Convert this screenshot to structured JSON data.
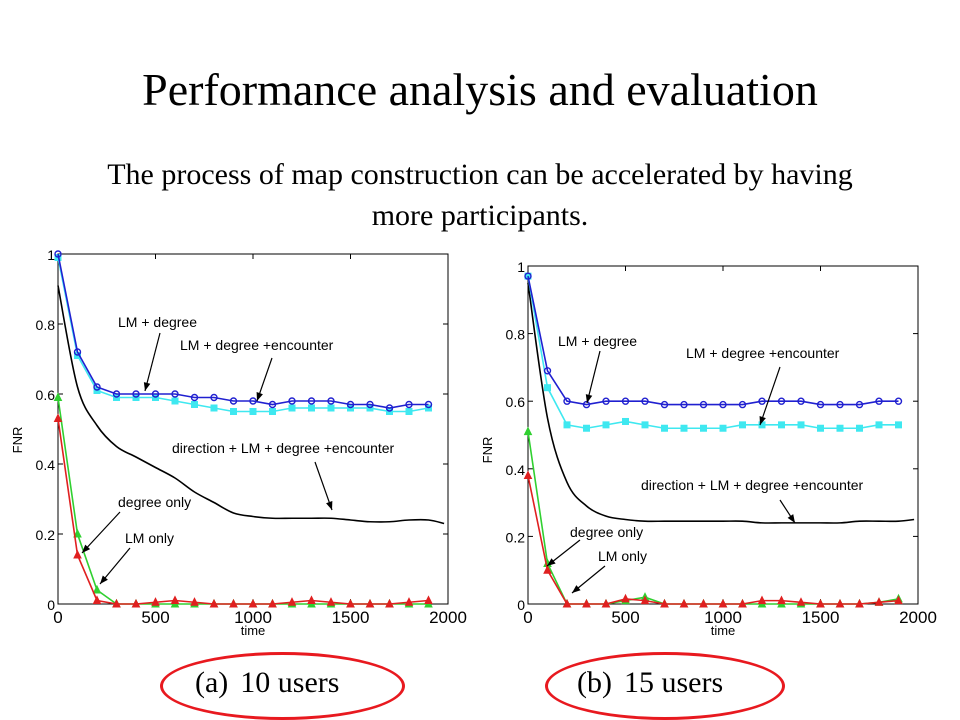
{
  "slide": {
    "title": "Performance analysis and evaluation",
    "subtitle": "The process of map construction can be accelerated by having more participants.",
    "captions": [
      {
        "tag": "(a)",
        "text": "10 users"
      },
      {
        "tag": "(b)",
        "text": "15 users"
      }
    ]
  },
  "colors": {
    "lm_degree": "#2020d0",
    "lm_degree_encounter": "#3fe8f0",
    "direction_lm_degree_encounter": "#000000",
    "degree_only": "#30d030",
    "lm_only": "#e02020",
    "highlight": "#e8191f"
  },
  "chart_data": [
    {
      "type": "line",
      "xlabel": "time",
      "ylabel": "FNR",
      "xlim": [
        0,
        2000
      ],
      "ylim": [
        0,
        1
      ],
      "xticks": [
        "0",
        "500",
        "1000",
        "1500",
        "2000"
      ],
      "yticks": [
        "0",
        "0.2",
        "0.4",
        "0.6",
        "0.8",
        "1"
      ],
      "grid": false,
      "series": [
        {
          "name": "LM + degree",
          "marker": "circle",
          "color_key": "lm_degree",
          "x": [
            0,
            100,
            200,
            300,
            400,
            500,
            600,
            700,
            800,
            900,
            1000,
            1100,
            1200,
            1300,
            1400,
            1500,
            1600,
            1700,
            1800,
            1900
          ],
          "y": [
            1.0,
            0.72,
            0.62,
            0.6,
            0.6,
            0.6,
            0.6,
            0.59,
            0.59,
            0.58,
            0.58,
            0.57,
            0.58,
            0.58,
            0.58,
            0.57,
            0.57,
            0.56,
            0.57,
            0.57
          ]
        },
        {
          "name": "LM + degree +encounter",
          "marker": "square",
          "color_key": "lm_degree_encounter",
          "x": [
            0,
            100,
            200,
            300,
            400,
            500,
            600,
            700,
            800,
            900,
            1000,
            1100,
            1200,
            1300,
            1400,
            1500,
            1600,
            1700,
            1800,
            1900
          ],
          "y": [
            0.99,
            0.71,
            0.61,
            0.59,
            0.59,
            0.59,
            0.58,
            0.57,
            0.56,
            0.55,
            0.55,
            0.55,
            0.56,
            0.56,
            0.56,
            0.56,
            0.56,
            0.55,
            0.55,
            0.56
          ]
        },
        {
          "name": "direction + LM + degree +encounter",
          "marker": "none",
          "color_key": "direction_lm_degree_encounter",
          "x": [
            0,
            100,
            200,
            300,
            400,
            500,
            600,
            700,
            800,
            900,
            1000,
            1100,
            1200,
            1300,
            1400,
            1500,
            1600,
            1700,
            1800,
            1900,
            1980
          ],
          "y": [
            0.91,
            0.62,
            0.51,
            0.45,
            0.42,
            0.39,
            0.36,
            0.32,
            0.29,
            0.26,
            0.25,
            0.245,
            0.245,
            0.245,
            0.245,
            0.24,
            0.235,
            0.235,
            0.24,
            0.24,
            0.23
          ]
        },
        {
          "name": "degree only",
          "marker": "triangle",
          "color_key": "degree_only",
          "x": [
            0,
            100,
            200,
            300,
            400,
            500,
            600,
            700,
            800,
            900,
            1000,
            1100,
            1200,
            1300,
            1400,
            1500,
            1600,
            1700,
            1800,
            1900
          ],
          "y": [
            0.59,
            0.2,
            0.04,
            0.0,
            0.0,
            0.0,
            0.0,
            0.0,
            0.0,
            0.0,
            0.0,
            0.0,
            0.0,
            0.0,
            0.0,
            0.0,
            0.0,
            0.0,
            0.0,
            0.0
          ]
        },
        {
          "name": "LM only",
          "marker": "triangle",
          "color_key": "lm_only",
          "x": [
            0,
            100,
            200,
            300,
            400,
            500,
            600,
            700,
            800,
            900,
            1000,
            1100,
            1200,
            1300,
            1400,
            1500,
            1600,
            1700,
            1800,
            1900
          ],
          "y": [
            0.53,
            0.14,
            0.01,
            0.0,
            0.0,
            0.005,
            0.01,
            0.005,
            0.0,
            0.0,
            0.0,
            0.0,
            0.005,
            0.01,
            0.005,
            0.0,
            0.0,
            0.0,
            0.005,
            0.01
          ]
        }
      ],
      "annotations": [
        {
          "text": "LM + degree",
          "series": "LM + degree"
        },
        {
          "text": "LM + degree +encounter",
          "series": "LM + degree +encounter"
        },
        {
          "text": "direction + LM + degree +encounter",
          "series": "direction + LM + degree +encounter"
        },
        {
          "text": "degree only",
          "series": "degree only"
        },
        {
          "text": "LM only",
          "series": "LM only"
        }
      ]
    },
    {
      "type": "line",
      "xlabel": "time",
      "ylabel": "FNR",
      "xlim": [
        0,
        2000
      ],
      "ylim": [
        0,
        1
      ],
      "xticks": [
        "0",
        "500",
        "1000",
        "1500",
        "2000"
      ],
      "yticks": [
        "0",
        "0.2",
        "0.4",
        "0.6",
        "0.8",
        "1"
      ],
      "grid": false,
      "series": [
        {
          "name": "LM + degree",
          "marker": "circle",
          "color_key": "lm_degree",
          "x": [
            0,
            100,
            200,
            300,
            400,
            500,
            600,
            700,
            800,
            900,
            1000,
            1100,
            1200,
            1300,
            1400,
            1500,
            1600,
            1700,
            1800,
            1900
          ],
          "y": [
            0.97,
            0.69,
            0.6,
            0.59,
            0.6,
            0.6,
            0.6,
            0.59,
            0.59,
            0.59,
            0.59,
            0.59,
            0.6,
            0.6,
            0.6,
            0.59,
            0.59,
            0.59,
            0.6,
            0.6
          ]
        },
        {
          "name": "LM + degree +encounter",
          "marker": "square",
          "color_key": "lm_degree_encounter",
          "x": [
            0,
            100,
            200,
            300,
            400,
            500,
            600,
            700,
            800,
            900,
            1000,
            1100,
            1200,
            1300,
            1400,
            1500,
            1600,
            1700,
            1800,
            1900
          ],
          "y": [
            0.97,
            0.64,
            0.53,
            0.52,
            0.53,
            0.54,
            0.53,
            0.52,
            0.52,
            0.52,
            0.52,
            0.53,
            0.53,
            0.53,
            0.53,
            0.52,
            0.52,
            0.52,
            0.53,
            0.53
          ]
        },
        {
          "name": "direction + LM + degree +encounter",
          "marker": "none",
          "color_key": "direction_lm_degree_encounter",
          "x": [
            0,
            100,
            200,
            300,
            400,
            500,
            600,
            700,
            800,
            900,
            1000,
            1100,
            1200,
            1300,
            1400,
            1500,
            1600,
            1700,
            1800,
            1900,
            1980
          ],
          "y": [
            0.95,
            0.55,
            0.36,
            0.29,
            0.26,
            0.25,
            0.245,
            0.245,
            0.245,
            0.245,
            0.245,
            0.245,
            0.24,
            0.24,
            0.24,
            0.24,
            0.24,
            0.245,
            0.245,
            0.245,
            0.25
          ]
        },
        {
          "name": "degree only",
          "marker": "triangle",
          "color_key": "degree_only",
          "x": [
            0,
            100,
            200,
            300,
            400,
            500,
            600,
            700,
            800,
            900,
            1000,
            1100,
            1200,
            1300,
            1400,
            1500,
            1600,
            1700,
            1800,
            1900
          ],
          "y": [
            0.51,
            0.12,
            0.0,
            0.0,
            0.0,
            0.01,
            0.02,
            0.0,
            0.0,
            0.0,
            0.0,
            0.0,
            0.0,
            0.0,
            0.0,
            0.0,
            0.0,
            0.0,
            0.005,
            0.015
          ]
        },
        {
          "name": "LM only",
          "marker": "triangle",
          "color_key": "lm_only",
          "x": [
            0,
            100,
            200,
            300,
            400,
            500,
            600,
            700,
            800,
            900,
            1000,
            1100,
            1200,
            1300,
            1400,
            1500,
            1600,
            1700,
            1800,
            1900
          ],
          "y": [
            0.38,
            0.1,
            0.0,
            0.0,
            0.0,
            0.015,
            0.01,
            0.0,
            0.0,
            0.0,
            0.0,
            0.0,
            0.01,
            0.01,
            0.005,
            0.0,
            0.0,
            0.0,
            0.005,
            0.01
          ]
        }
      ],
      "annotations": [
        {
          "text": "LM + degree",
          "series": "LM + degree"
        },
        {
          "text": "LM + degree +encounter",
          "series": "LM + degree +encounter"
        },
        {
          "text": "direction + LM + degree +encounter",
          "series": "direction + LM + degree +encounter"
        },
        {
          "text": "degree only",
          "series": "degree only"
        },
        {
          "text": "LM only",
          "series": "LM only"
        }
      ]
    }
  ]
}
